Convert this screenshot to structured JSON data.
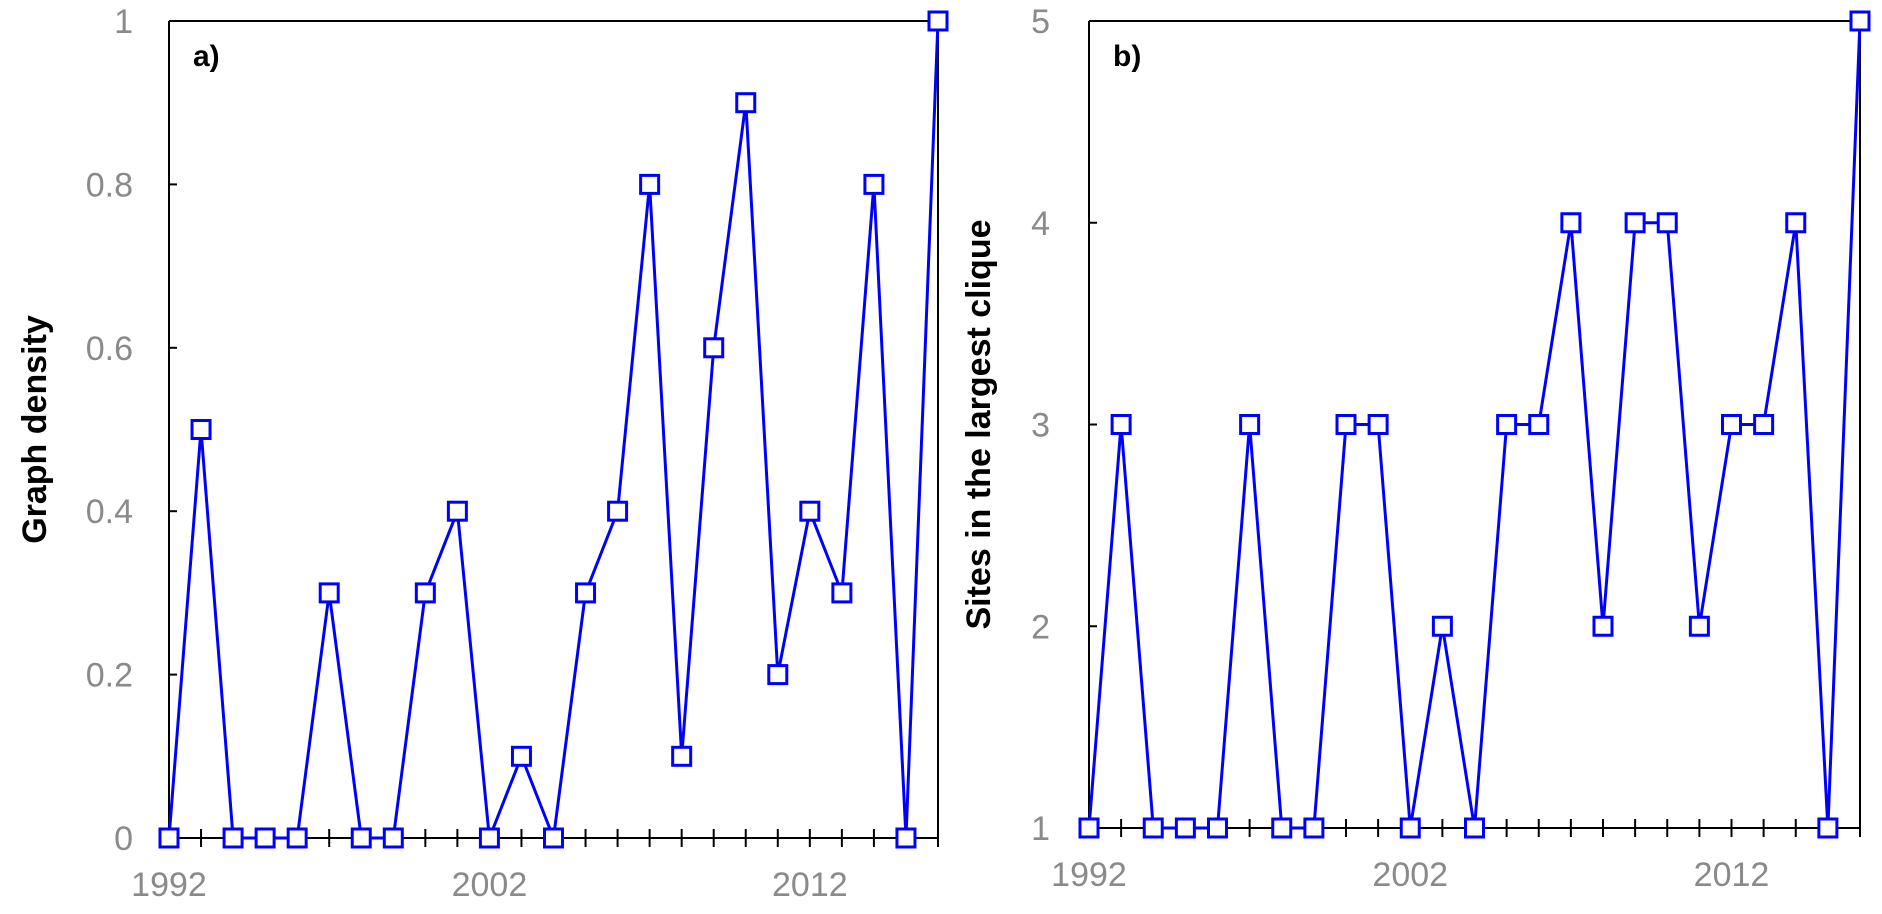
{
  "colors": {
    "series": "#0000ff",
    "axis": "#000000",
    "tick_text": "#8a8a8a",
    "marker_fill": "#ffffff"
  },
  "chart_data": [
    {
      "type": "line",
      "panel_label": "a)",
      "title": "",
      "xlabel": "",
      "ylabel": "Graph density",
      "xlim": [
        1992,
        2016
      ],
      "ylim": [
        0,
        1
      ],
      "xticks": [
        1992,
        2002,
        2012
      ],
      "yticks": [
        0,
        0.2,
        0.4,
        0.6,
        0.8,
        1
      ],
      "yticklabels": [
        "0",
        "0.2",
        "0.4",
        "0.6",
        "0.8",
        "1"
      ],
      "grid": false,
      "marker": "open-square",
      "series": [
        {
          "x": [
            1992,
            1993,
            1994,
            1995,
            1996,
            1997,
            1998,
            1999,
            2000,
            2001,
            2002,
            2003,
            2004,
            2005,
            2006,
            2007,
            2008,
            2009,
            2010,
            2011,
            2012,
            2013,
            2014,
            2015,
            2016
          ],
          "values": [
            0,
            0.5,
            0,
            0,
            0,
            0.3,
            0,
            0,
            0.3,
            0.4,
            0,
            0.1,
            0,
            0.3,
            0.4,
            0.8,
            0.1,
            0.6,
            0.9,
            0.2,
            0.4,
            0.3,
            0.8,
            0,
            1
          ]
        }
      ]
    },
    {
      "type": "line",
      "panel_label": "b)",
      "title": "",
      "xlabel": "",
      "ylabel": "Sites in the largest clique",
      "xlim": [
        1992,
        2016
      ],
      "ylim": [
        1,
        5
      ],
      "xticks": [
        1992,
        2002,
        2012
      ],
      "yticks": [
        1,
        2,
        3,
        4,
        5
      ],
      "yticklabels": [
        "1",
        "2",
        "3",
        "4",
        "5"
      ],
      "grid": false,
      "marker": "open-square",
      "series": [
        {
          "x": [
            1992,
            1993,
            1994,
            1995,
            1996,
            1997,
            1998,
            1999,
            2000,
            2001,
            2002,
            2003,
            2004,
            2005,
            2006,
            2007,
            2008,
            2009,
            2010,
            2011,
            2012,
            2013,
            2014,
            2015,
            2016
          ],
          "values": [
            1,
            3,
            1,
            1,
            1,
            3,
            1,
            1,
            3,
            3,
            1,
            2,
            1,
            3,
            3,
            4,
            2,
            4,
            4,
            2,
            3,
            3,
            4,
            1,
            5
          ]
        }
      ]
    }
  ]
}
